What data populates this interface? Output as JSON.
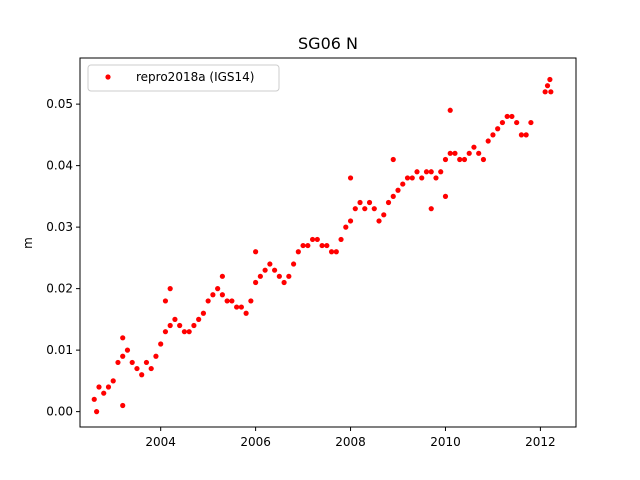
{
  "chart_data": {
    "type": "scatter",
    "title": "SG06 N",
    "xlabel": "",
    "ylabel": "m",
    "xlim": [
      2002.3,
      2012.75
    ],
    "ylim": [
      -0.0025,
      0.0575
    ],
    "xticks": [
      2004,
      2006,
      2008,
      2010,
      2012
    ],
    "yticks": [
      0.0,
      0.01,
      0.02,
      0.03,
      0.04,
      0.05
    ],
    "xtick_labels": [
      "2004",
      "2006",
      "2008",
      "2010",
      "2012"
    ],
    "ytick_labels": [
      "0.00",
      "0.01",
      "0.02",
      "0.03",
      "0.04",
      "0.05"
    ],
    "grid": false,
    "legend_position": "top-left",
    "series": [
      {
        "name": "repro2018a (IGS14)",
        "color": "#ff0000",
        "marker": "circle",
        "points": [
          [
            2002.6,
            0.002
          ],
          [
            2002.7,
            0.004
          ],
          [
            2002.8,
            0.003
          ],
          [
            2002.9,
            0.004
          ],
          [
            2003.0,
            0.005
          ],
          [
            2003.1,
            0.008
          ],
          [
            2003.2,
            0.009
          ],
          [
            2003.3,
            0.01
          ],
          [
            2003.4,
            0.008
          ],
          [
            2003.5,
            0.007
          ],
          [
            2003.6,
            0.006
          ],
          [
            2003.7,
            0.008
          ],
          [
            2003.8,
            0.007
          ],
          [
            2003.9,
            0.009
          ],
          [
            2004.0,
            0.011
          ],
          [
            2004.1,
            0.013
          ],
          [
            2004.2,
            0.014
          ],
          [
            2004.3,
            0.015
          ],
          [
            2004.4,
            0.014
          ],
          [
            2004.5,
            0.013
          ],
          [
            2004.6,
            0.013
          ],
          [
            2004.7,
            0.014
          ],
          [
            2004.8,
            0.015
          ],
          [
            2004.9,
            0.016
          ],
          [
            2005.0,
            0.018
          ],
          [
            2005.1,
            0.019
          ],
          [
            2005.2,
            0.02
          ],
          [
            2005.3,
            0.019
          ],
          [
            2005.4,
            0.018
          ],
          [
            2005.5,
            0.018
          ],
          [
            2005.6,
            0.017
          ],
          [
            2005.7,
            0.017
          ],
          [
            2005.8,
            0.016
          ],
          [
            2005.9,
            0.018
          ],
          [
            2006.0,
            0.021
          ],
          [
            2006.1,
            0.022
          ],
          [
            2006.2,
            0.023
          ],
          [
            2006.3,
            0.024
          ],
          [
            2006.4,
            0.023
          ],
          [
            2006.5,
            0.022
          ],
          [
            2006.6,
            0.021
          ],
          [
            2006.7,
            0.022
          ],
          [
            2006.8,
            0.024
          ],
          [
            2006.9,
            0.026
          ],
          [
            2007.0,
            0.027
          ],
          [
            2007.1,
            0.027
          ],
          [
            2007.2,
            0.028
          ],
          [
            2007.3,
            0.028
          ],
          [
            2007.4,
            0.027
          ],
          [
            2007.5,
            0.027
          ],
          [
            2007.6,
            0.026
          ],
          [
            2007.7,
            0.026
          ],
          [
            2007.8,
            0.028
          ],
          [
            2007.9,
            0.03
          ],
          [
            2008.0,
            0.031
          ],
          [
            2008.1,
            0.033
          ],
          [
            2008.2,
            0.034
          ],
          [
            2008.3,
            0.033
          ],
          [
            2008.4,
            0.034
          ],
          [
            2008.5,
            0.033
          ],
          [
            2008.6,
            0.031
          ],
          [
            2008.7,
            0.032
          ],
          [
            2008.8,
            0.034
          ],
          [
            2008.9,
            0.035
          ],
          [
            2009.0,
            0.036
          ],
          [
            2009.1,
            0.037
          ],
          [
            2009.2,
            0.038
          ],
          [
            2009.3,
            0.038
          ],
          [
            2009.4,
            0.039
          ],
          [
            2009.5,
            0.038
          ],
          [
            2009.6,
            0.039
          ],
          [
            2009.7,
            0.039
          ],
          [
            2009.8,
            0.038
          ],
          [
            2009.9,
            0.039
          ],
          [
            2010.0,
            0.041
          ],
          [
            2010.1,
            0.042
          ],
          [
            2010.2,
            0.042
          ],
          [
            2010.3,
            0.041
          ],
          [
            2010.4,
            0.041
          ],
          [
            2010.5,
            0.042
          ],
          [
            2010.6,
            0.043
          ],
          [
            2010.7,
            0.042
          ],
          [
            2010.8,
            0.041
          ],
          [
            2010.9,
            0.044
          ],
          [
            2011.0,
            0.045
          ],
          [
            2011.1,
            0.046
          ],
          [
            2011.2,
            0.047
          ],
          [
            2011.3,
            0.048
          ],
          [
            2011.4,
            0.048
          ],
          [
            2011.5,
            0.047
          ],
          [
            2011.6,
            0.045
          ],
          [
            2011.7,
            0.045
          ],
          [
            2011.8,
            0.047
          ],
          [
            2012.1,
            0.052
          ],
          [
            2012.15,
            0.053
          ],
          [
            2012.2,
            0.054
          ],
          [
            2012.22,
            0.052
          ],
          [
            2003.2,
            0.012
          ],
          [
            2004.1,
            0.018
          ],
          [
            2004.2,
            0.02
          ],
          [
            2005.3,
            0.022
          ],
          [
            2006.0,
            0.026
          ],
          [
            2008.0,
            0.038
          ],
          [
            2008.9,
            0.041
          ],
          [
            2009.7,
            0.033
          ],
          [
            2010.0,
            0.035
          ],
          [
            2010.1,
            0.049
          ],
          [
            2003.2,
            0.001
          ],
          [
            2002.65,
            0.0
          ]
        ]
      }
    ]
  }
}
